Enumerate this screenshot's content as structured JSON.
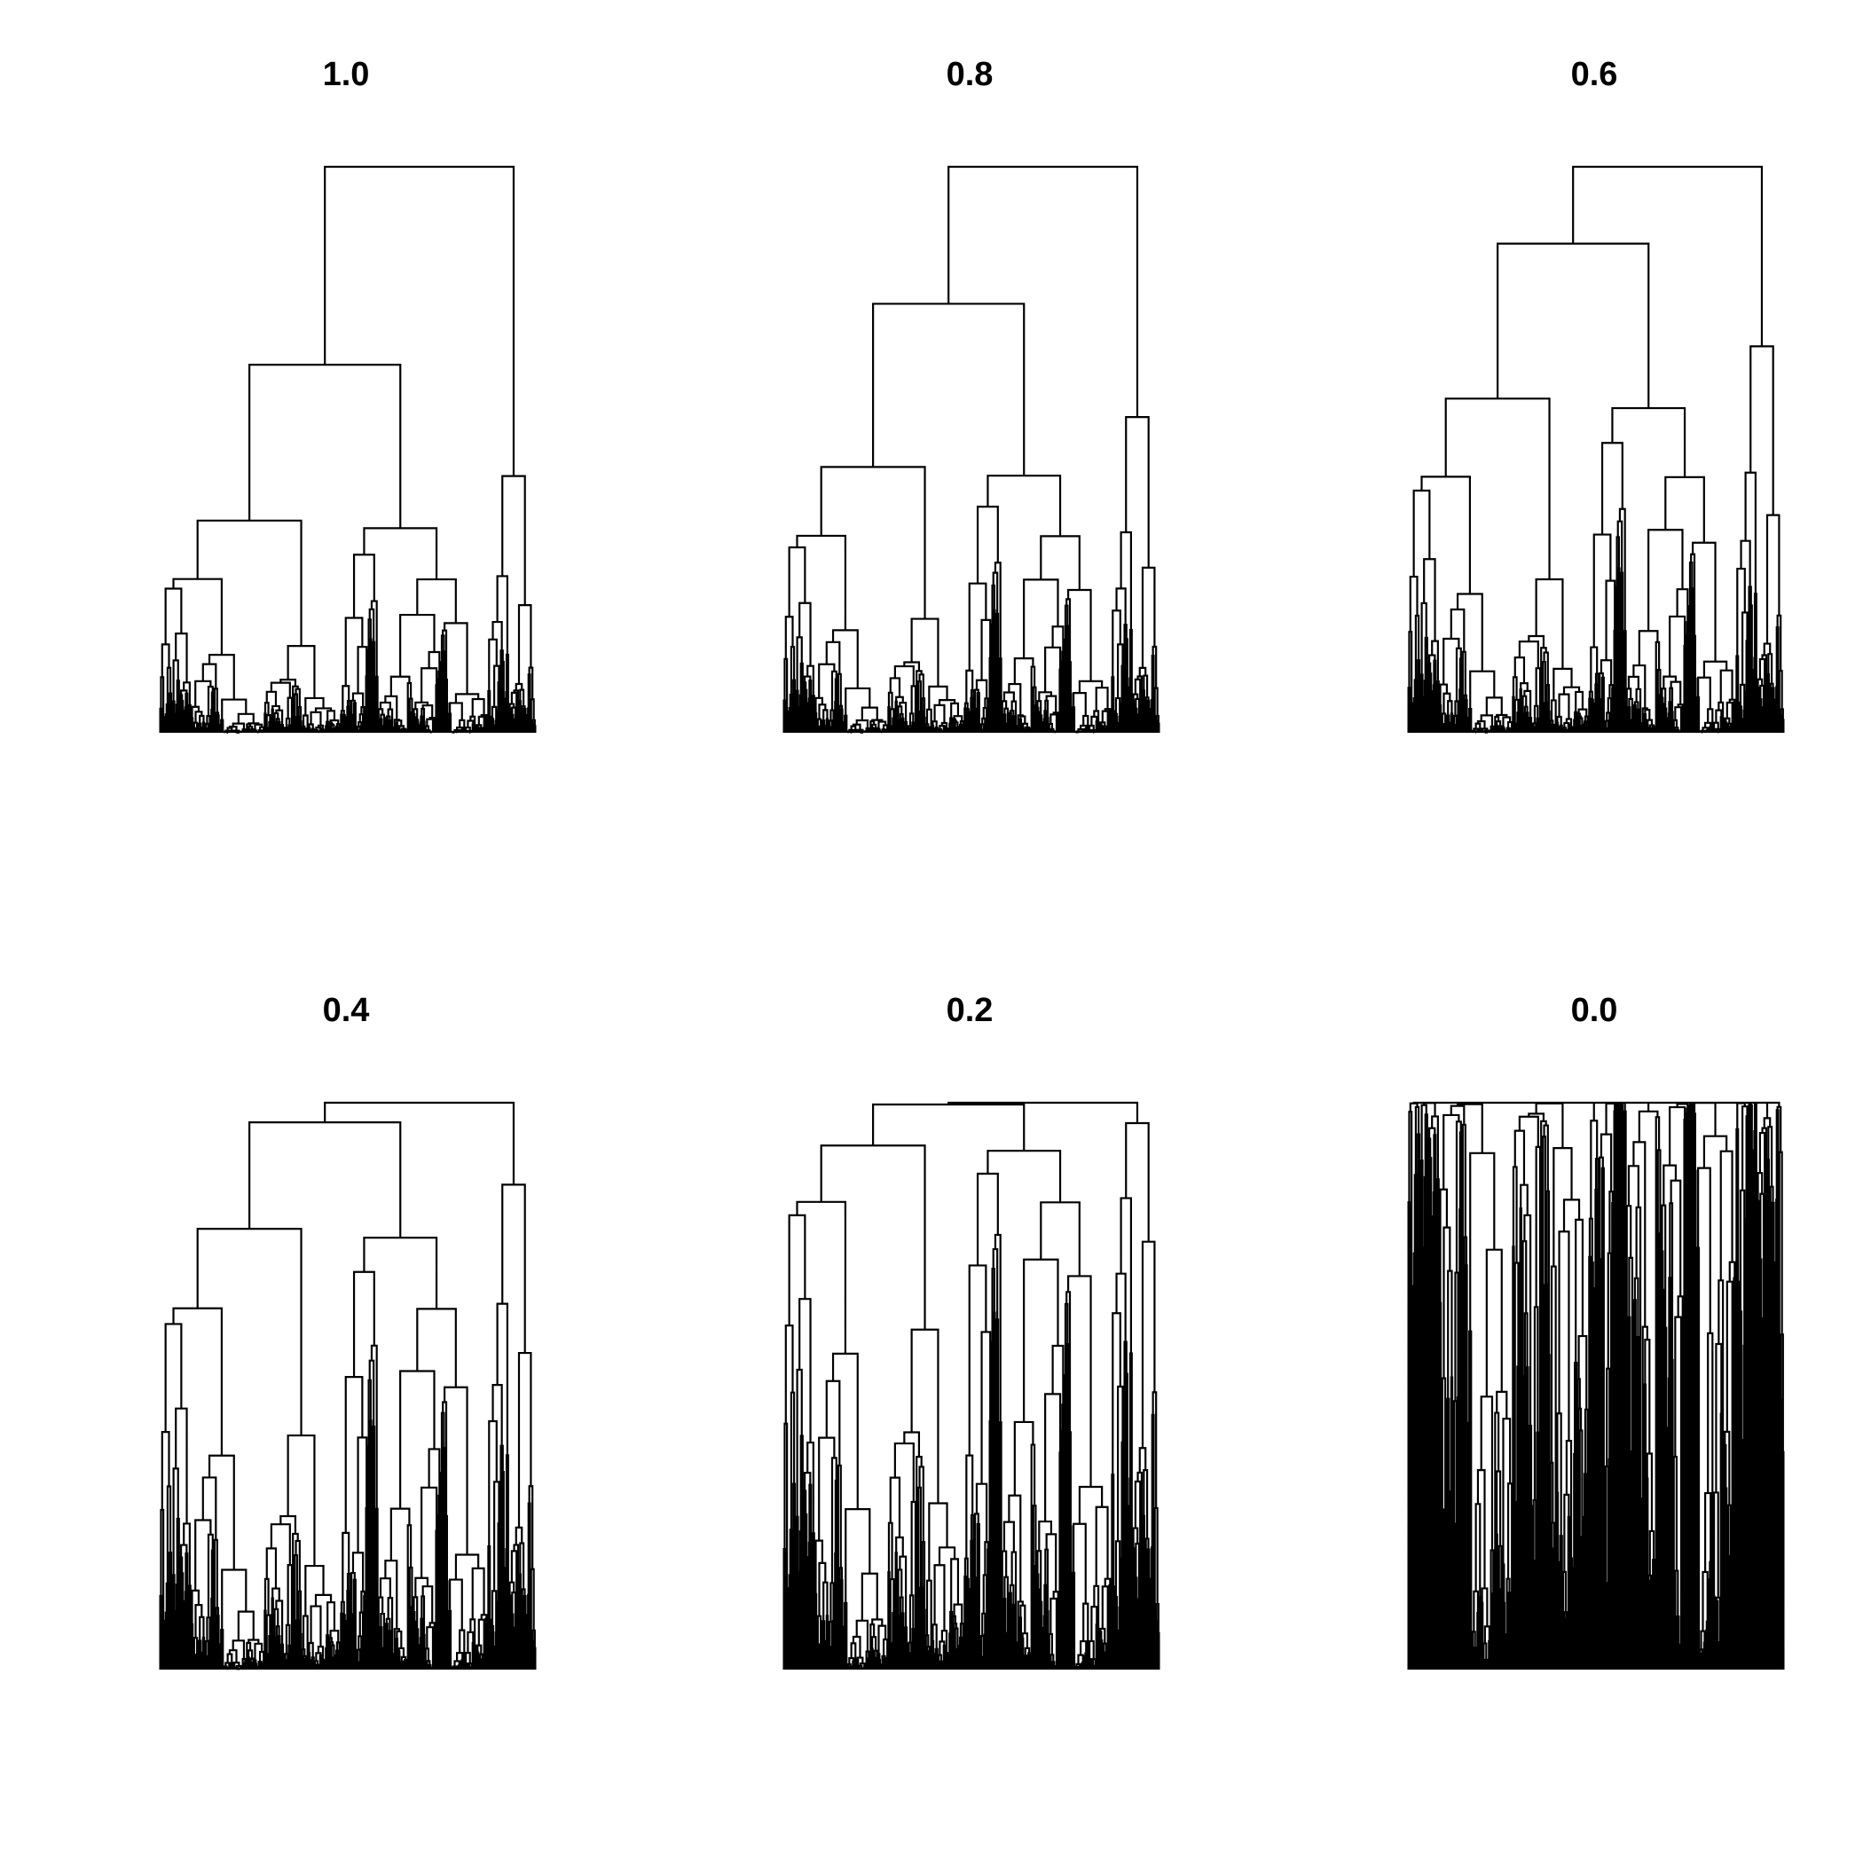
{
  "figure": {
    "background": "#ffffff",
    "ink_color": "#000000"
  },
  "panels": [
    {
      "title": "1.0"
    },
    {
      "title": "0.8"
    },
    {
      "title": "0.6"
    },
    {
      "title": "0.4"
    },
    {
      "title": "0.2"
    },
    {
      "title": "0.0"
    }
  ]
}
